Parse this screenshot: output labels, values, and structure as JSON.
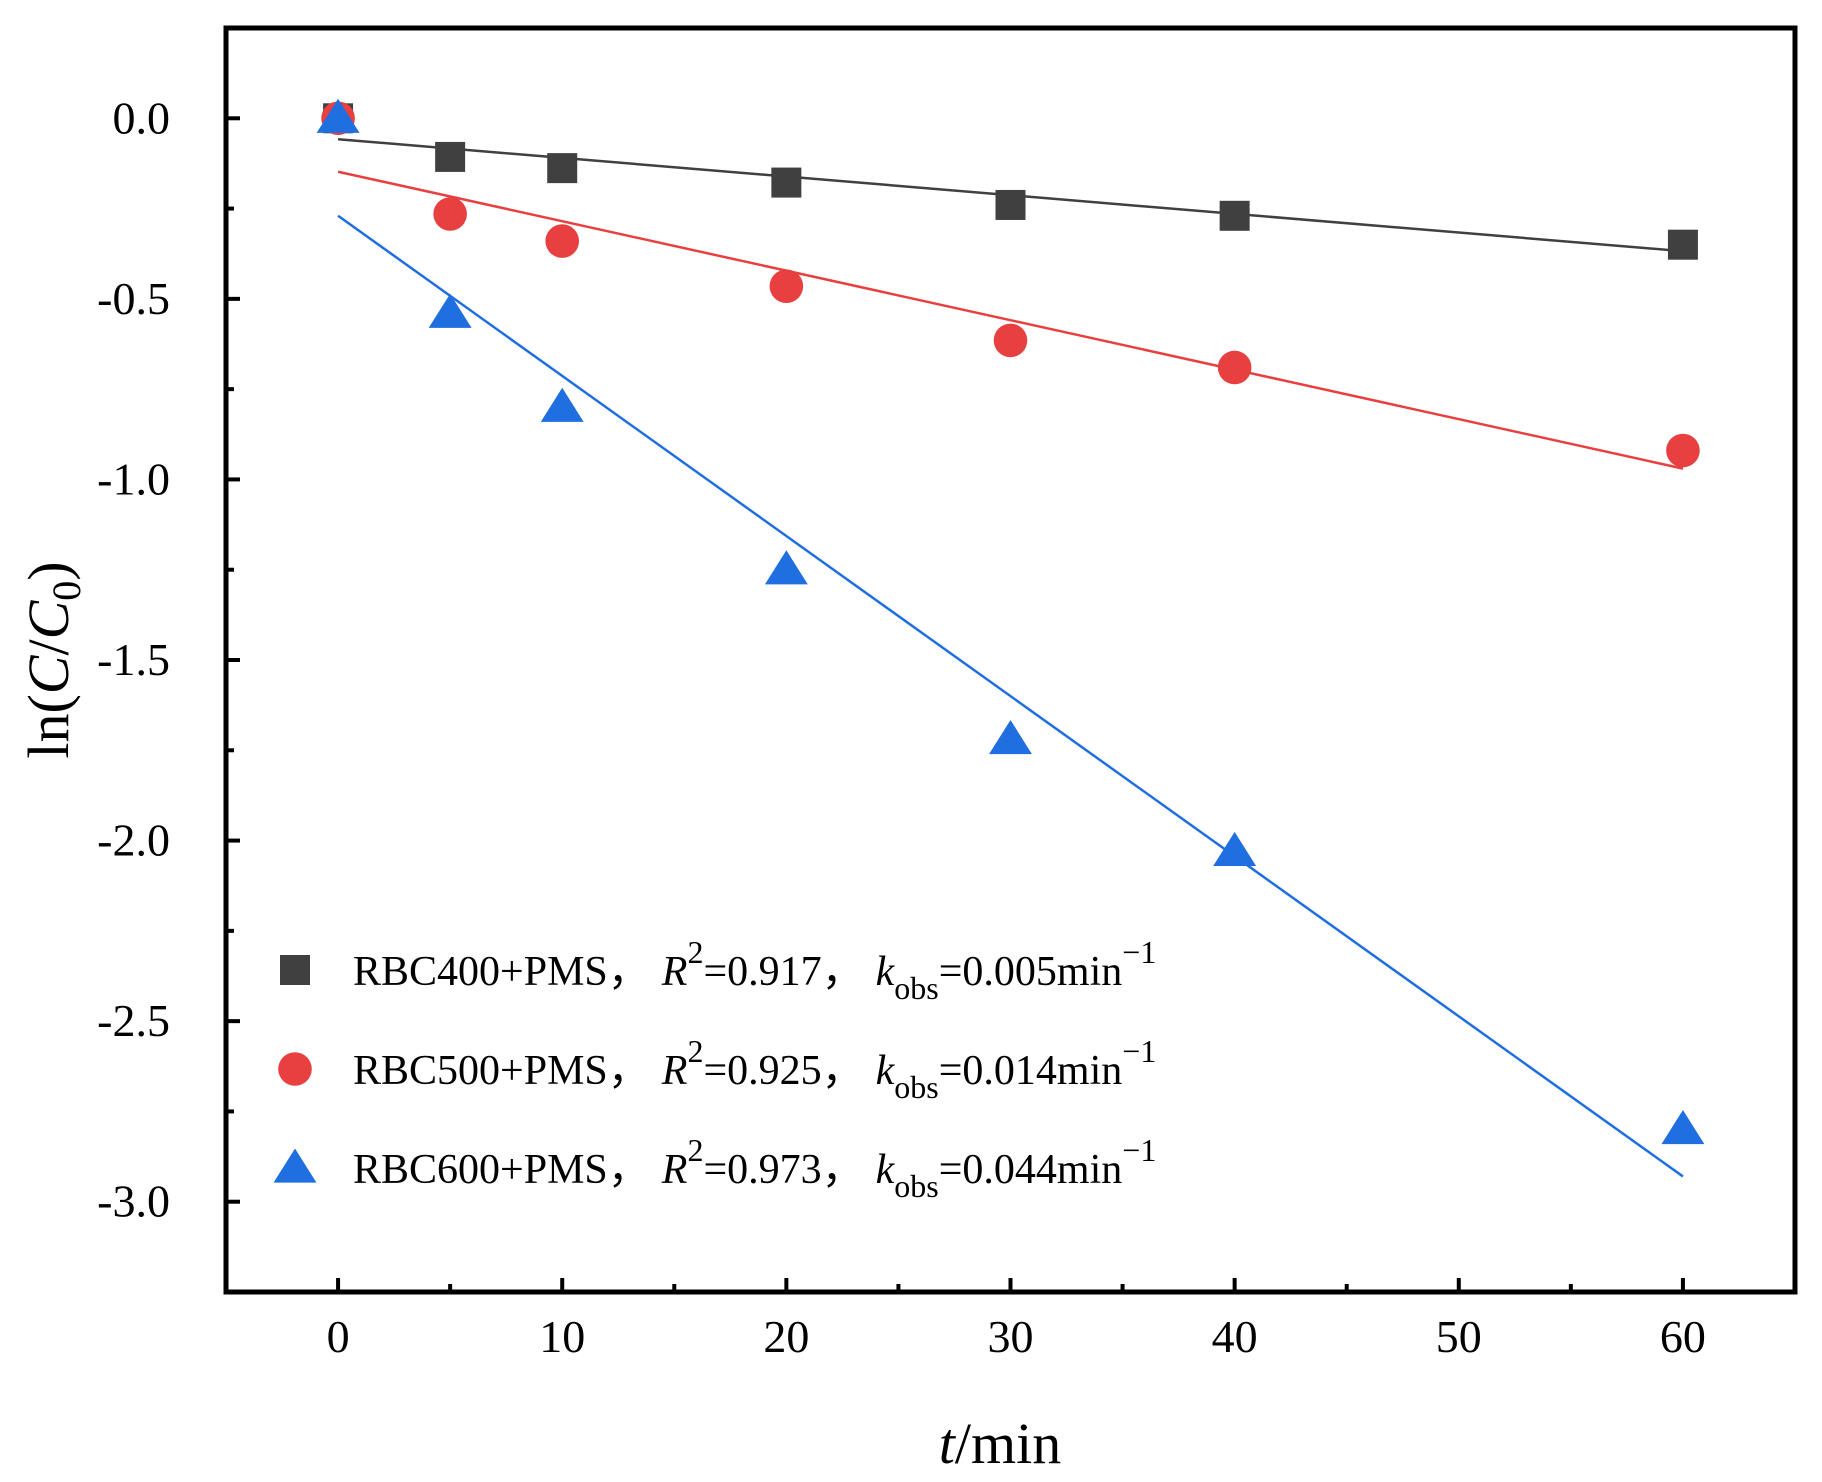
{
  "chart_data": {
    "type": "scatter",
    "xlabel": "t/min",
    "ylabel": "ln(C/C0)",
    "xlim": [
      -5,
      65
    ],
    "ylim": [
      -3.25,
      0.25
    ],
    "x_ticks": [
      0,
      10,
      20,
      30,
      40,
      50,
      60
    ],
    "x_tick_labels": [
      "0",
      "10",
      "20",
      "30",
      "40",
      "50",
      "60"
    ],
    "y_ticks": [
      0.0,
      -0.5,
      -1.0,
      -1.5,
      -2.0,
      -2.5,
      -3.0
    ],
    "y_tick_labels": [
      "0.0",
      "-0.5",
      "-1.0",
      "-1.5",
      "-2.0",
      "-2.5",
      "-3.0"
    ],
    "grid": false,
    "legend_position": "lower-left",
    "series": [
      {
        "name": "RBC400+PMS",
        "marker": "square",
        "color": "#404040",
        "x": [
          0,
          5,
          10,
          20,
          30,
          40,
          60
        ],
        "y": [
          0.0,
          -0.107,
          -0.138,
          -0.178,
          -0.24,
          -0.27,
          -0.35
        ],
        "fit": {
          "x": [
            0,
            60
          ],
          "y": [
            -0.058,
            -0.368
          ]
        },
        "r2": "0.917",
        "kobs": "0.005",
        "legend": {
          "series_label": "RBC400+PMS，",
          "r_symbol": "R",
          "r_exp": "2",
          "r_value": "=0.917，",
          "k_symbol": "k",
          "k_sub": "obs",
          "k_value": "=0.005min",
          "unit_exp": "−1"
        }
      },
      {
        "name": "RBC500+PMS",
        "marker": "circle",
        "color": "#e84040",
        "x": [
          0,
          5,
          10,
          20,
          30,
          40,
          60
        ],
        "y": [
          0.0,
          -0.265,
          -0.34,
          -0.465,
          -0.615,
          -0.69,
          -0.92
        ],
        "fit": {
          "x": [
            0,
            60
          ],
          "y": [
            -0.148,
            -0.97
          ]
        },
        "r2": "0.925",
        "kobs": "0.014",
        "legend": {
          "series_label": "RBC500+PMS，",
          "r_symbol": "R",
          "r_exp": "2",
          "r_value": "=0.925，",
          "k_symbol": "k",
          "k_sub": "obs",
          "k_value": "=0.014min",
          "unit_exp": "−1"
        }
      },
      {
        "name": "RBC600+PMS",
        "marker": "triangle",
        "color": "#1f6fe0",
        "x": [
          0,
          5,
          10,
          20,
          30,
          40,
          60
        ],
        "y": [
          0.0,
          -0.54,
          -0.8,
          -1.25,
          -1.72,
          -2.03,
          -2.8
        ],
        "fit": {
          "x": [
            0,
            60
          ],
          "y": [
            -0.27,
            -2.93
          ]
        },
        "r2": "0.973",
        "kobs": "0.044",
        "legend": {
          "series_label": "RBC600+PMS，",
          "r_symbol": "R",
          "r_exp": "2",
          "r_value": "=0.973，",
          "k_symbol": "k",
          "k_sub": "obs",
          "k_value": "=0.044min",
          "unit_exp": "−1"
        }
      }
    ]
  },
  "axes": {
    "x_label_var": "t",
    "x_label_unit": "/min",
    "y_label_prefix": "ln(",
    "y_label_c": "C",
    "y_label_slash": "/",
    "y_label_c0": "C",
    "y_label_sub": "0",
    "y_label_suffix": ")"
  }
}
